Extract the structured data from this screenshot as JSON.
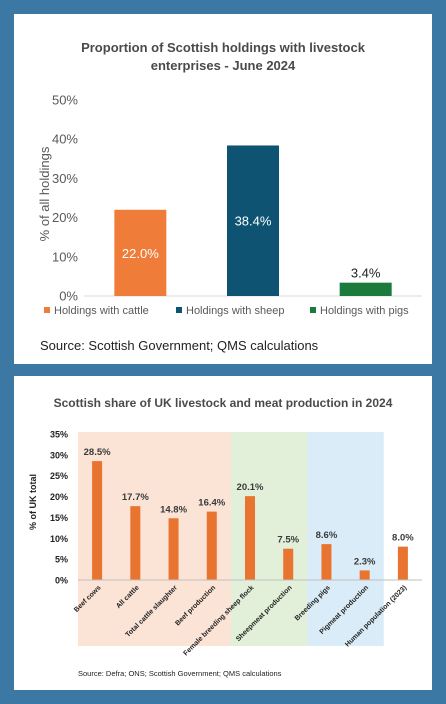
{
  "chart_data": [
    {
      "type": "bar",
      "title_line1": "Proportion of Scottish holdings with livestock",
      "title_line2": "enterprises - June 2024",
      "ylabel": "% of all holdings",
      "ylim": [
        0,
        50
      ],
      "yticks": [
        "0%",
        "10%",
        "20%",
        "30%",
        "40%",
        "50%"
      ],
      "grid": false,
      "legend_position": "bottom",
      "categories": [
        "Holdings with cattle",
        "Holdings with sheep",
        "Holdings with pigs"
      ],
      "values": [
        22.0,
        38.4,
        3.4
      ],
      "value_labels": [
        "22.0%",
        "38.4%",
        "3.4%"
      ],
      "colors": [
        "#f07c3a",
        "#0e5472",
        "#1b7a3c"
      ],
      "source": "Source: Scottish Government; QMS calculations"
    },
    {
      "type": "bar",
      "title": "Scottish share of UK livestock and meat production in 2024",
      "ylabel": "% of UK total",
      "ylim": [
        0,
        35
      ],
      "yticks": [
        "0%",
        "5%",
        "10%",
        "15%",
        "20%",
        "25%",
        "30%",
        "35%"
      ],
      "grid": false,
      "categories": [
        "Beef cows",
        "All cattle",
        "Total cattle slaughter",
        "Beef production",
        "Female breeding sheep flock",
        "Sheepmeat production",
        "Breeding pigs",
        "Pigmeat production",
        "Human population (2023)"
      ],
      "values": [
        28.5,
        17.7,
        14.8,
        16.4,
        20.1,
        7.5,
        8.6,
        2.3,
        8.0
      ],
      "value_labels": [
        "28.5%",
        "17.7%",
        "14.8%",
        "16.4%",
        "20.1%",
        "7.5%",
        "8.6%",
        "2.3%",
        "8.0%"
      ],
      "bar_color": "#e8742f",
      "background_groups": [
        {
          "from": 0,
          "to": 3,
          "color": "#fbe3d6"
        },
        {
          "from": 4,
          "to": 5,
          "color": "#e2efd9"
        },
        {
          "from": 6,
          "to": 7,
          "color": "#d9ecf7"
        }
      ],
      "source": "Source: Defra; ONS; Scottish Government; QMS calculations"
    }
  ]
}
